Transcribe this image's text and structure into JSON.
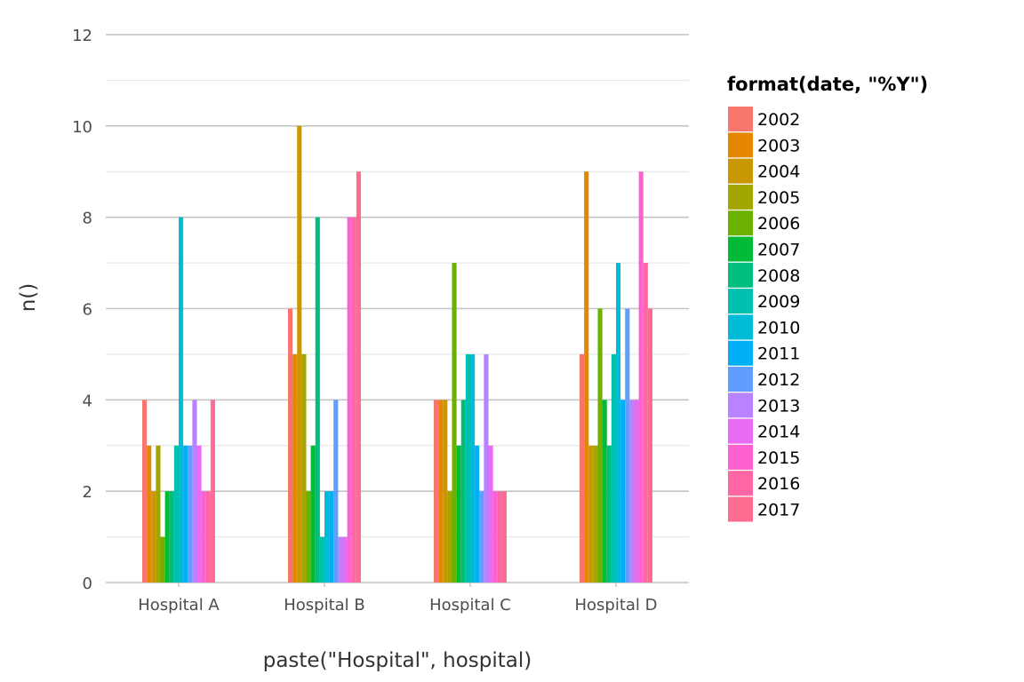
{
  "chart_data": {
    "type": "bar",
    "title": "",
    "xlabel": "paste(\"Hospital\", hospital)",
    "ylabel": "n()",
    "ylim": [
      0,
      12
    ],
    "yticks": [
      0,
      2,
      4,
      6,
      8,
      10,
      12
    ],
    "grid": true,
    "legend_placement": "right",
    "legend_title": "format(date, \"%Y\")",
    "categories": [
      "Hospital A",
      "Hospital B",
      "Hospital C",
      "Hospital D"
    ],
    "series": [
      {
        "name": "2002",
        "color": "#F8766D",
        "values": [
          4,
          6,
          4,
          5
        ]
      },
      {
        "name": "2003",
        "color": "#E58700",
        "values": [
          3,
          5,
          4,
          9
        ]
      },
      {
        "name": "2004",
        "color": "#C99800",
        "values": [
          2,
          10,
          4,
          3
        ]
      },
      {
        "name": "2005",
        "color": "#A3A500",
        "values": [
          3,
          5,
          2,
          3
        ]
      },
      {
        "name": "2006",
        "color": "#6BB100",
        "values": [
          1,
          2,
          7,
          6
        ]
      },
      {
        "name": "2007",
        "color": "#00BA38",
        "values": [
          2,
          3,
          3,
          4
        ]
      },
      {
        "name": "2008",
        "color": "#00BF7D",
        "values": [
          2,
          8,
          4,
          3
        ]
      },
      {
        "name": "2009",
        "color": "#00C0AF",
        "values": [
          3,
          1,
          5,
          5
        ]
      },
      {
        "name": "2010",
        "color": "#00BCD8",
        "values": [
          8,
          2,
          5,
          7
        ]
      },
      {
        "name": "2011",
        "color": "#00B0F6",
        "values": [
          3,
          2,
          3,
          4
        ]
      },
      {
        "name": "2012",
        "color": "#619CFF",
        "values": [
          3,
          4,
          2,
          6
        ]
      },
      {
        "name": "2013",
        "color": "#B983FF",
        "values": [
          4,
          1,
          5,
          4
        ]
      },
      {
        "name": "2014",
        "color": "#E76BF3",
        "values": [
          3,
          1,
          3,
          4
        ]
      },
      {
        "name": "2015",
        "color": "#FD61D1",
        "values": [
          2,
          8,
          2,
          9
        ]
      },
      {
        "name": "2016",
        "color": "#FF67A4",
        "values": [
          2,
          8,
          2,
          7
        ]
      },
      {
        "name": "2017",
        "color": "#FF6C91",
        "values": [
          4,
          9,
          2,
          6
        ]
      }
    ]
  }
}
